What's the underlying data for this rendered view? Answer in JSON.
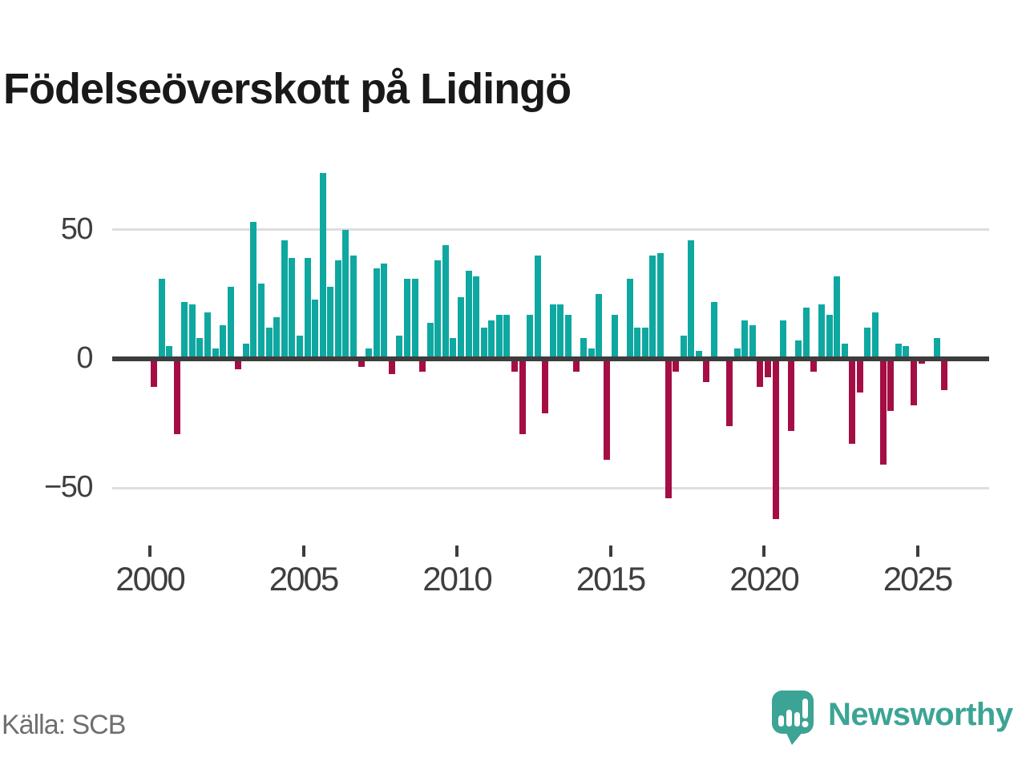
{
  "title": "Födelseöverskott på Lidingö",
  "source": "Källa: SCB",
  "branding": {
    "name": "Newsworthy"
  },
  "colors": {
    "positive": "#0EA8A1",
    "negative": "#A50E44",
    "axis": "#3d3d3d",
    "grid": "#dedede",
    "tick_label": "#3f3f3f",
    "title_text": "#191919",
    "source_text": "#6f6f6f",
    "brand": "#3CA495"
  },
  "chart_data": {
    "type": "bar",
    "title": "Födelseöverskott på Lidingö",
    "xlabel": "",
    "ylabel": "",
    "frequency": "quarterly",
    "x_start": "2000 Q1",
    "x_end": "2025 Q4",
    "ylim": [
      -75,
      80
    ],
    "grid": "horizontal",
    "legend": "none",
    "y_ticks": [
      {
        "value": 50,
        "label": "50"
      },
      {
        "value": 0,
        "label": "0"
      },
      {
        "value": -50,
        "label": "−50"
      }
    ],
    "x_tick_labels": [
      "2000",
      "2005",
      "2010",
      "2015",
      "2020",
      "2025"
    ],
    "values": [
      -11,
      31,
      5,
      -29,
      22,
      21,
      8,
      18,
      4,
      13,
      28,
      -4,
      6,
      53,
      29,
      12,
      16,
      46,
      39,
      9,
      39,
      23,
      72,
      28,
      38,
      50,
      40,
      -3,
      4,
      35,
      37,
      -6,
      9,
      31,
      31,
      -5,
      14,
      38,
      44,
      8,
      24,
      34,
      32,
      12,
      15,
      17,
      17,
      -5,
      -29,
      17,
      40,
      -21,
      21,
      21,
      17,
      -5,
      8,
      4,
      25,
      -39,
      17,
      1,
      31,
      12,
      12,
      40,
      41,
      -54,
      -5,
      9,
      46,
      3,
      -9,
      22,
      1,
      -26,
      4,
      15,
      13,
      -11,
      -7,
      -62,
      15,
      -28,
      7,
      20,
      -5,
      21,
      17,
      32,
      6,
      -33,
      -13,
      12,
      18,
      -41,
      -20,
      6,
      5,
      -18,
      -2,
      1,
      8,
      -12
    ]
  }
}
